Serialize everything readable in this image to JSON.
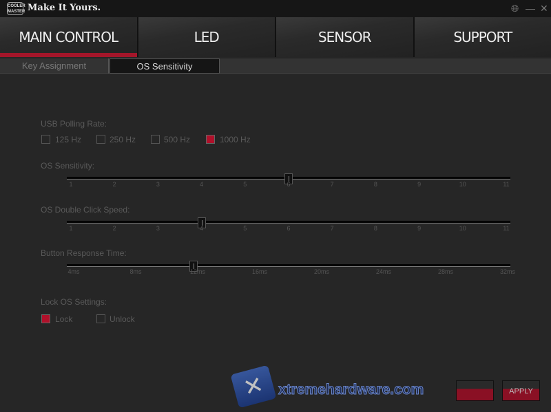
{
  "app": {
    "logo": "COOLER MASTER",
    "title": "Make It Yours."
  },
  "window": {
    "icons": [
      "globe-icon",
      "minimize-icon",
      "close-icon"
    ]
  },
  "tabs": [
    {
      "label": "MAIN CONTROL",
      "active": true
    },
    {
      "label": "LED"
    },
    {
      "label": "SENSOR"
    },
    {
      "label": "SUPPORT"
    }
  ],
  "subtabs": [
    {
      "label": "Key Assignment"
    },
    {
      "label": "OS Sensitivity",
      "active": true
    }
  ],
  "polling": {
    "label": "USB Polling Rate:",
    "options": [
      {
        "label": "125 Hz",
        "checked": false
      },
      {
        "label": "250 Hz",
        "checked": false
      },
      {
        "label": "500 Hz",
        "checked": false
      },
      {
        "label": "1000 Hz",
        "checked": true
      }
    ]
  },
  "sliders": [
    {
      "label": "OS Sensitivity:",
      "ticks": [
        "1",
        "2",
        "3",
        "4",
        "5",
        "6",
        "7",
        "8",
        "9",
        "10",
        "11"
      ],
      "value_index": 5
    },
    {
      "label": "OS Double Click Speed:",
      "ticks": [
        "1",
        "2",
        "3",
        "4",
        "5",
        "6",
        "7",
        "8",
        "9",
        "10",
        "11"
      ],
      "value_index": 3
    },
    {
      "label": "Button Response Time:",
      "ticks": [
        "4ms",
        "8ms",
        "12ms",
        "16ms",
        "20ms",
        "24ms",
        "28ms",
        "32ms"
      ],
      "value_index": 2
    }
  ],
  "lock": {
    "label": "Lock OS Settings:",
    "options": [
      {
        "label": "Lock",
        "checked": true
      },
      {
        "label": "Unlock",
        "checked": false
      }
    ]
  },
  "buttons": {
    "left": "",
    "apply": "APPLY"
  },
  "watermark": "xtremehardware.com",
  "colors": {
    "accent": "#a3162a",
    "background": "#262626"
  }
}
